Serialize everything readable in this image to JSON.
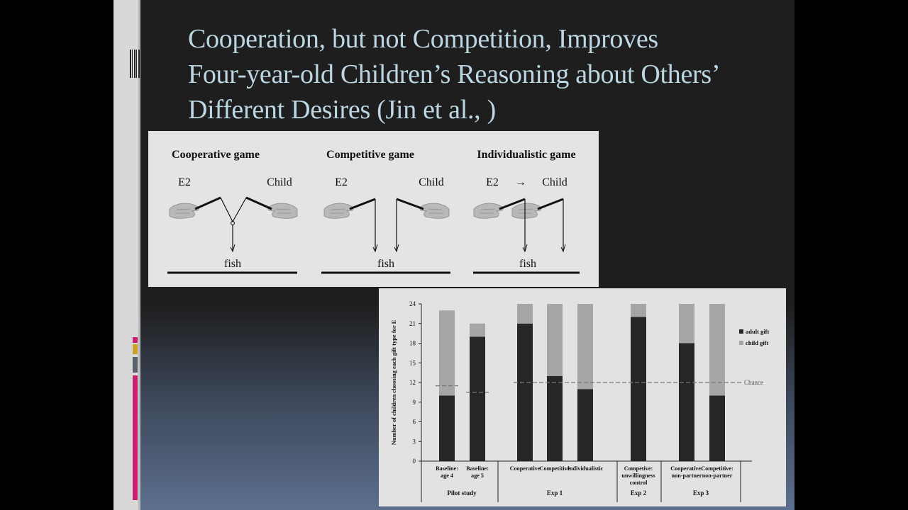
{
  "slide": {
    "title_lines": [
      "Cooperation, but not Competition, Improves",
      "Four-year-old Children’s Reasoning about Others’",
      "Different Desires (Jin et al., )"
    ],
    "accent_colors": [
      "#cc1f72",
      "#c9a227",
      "#5a6070",
      "#cc1f72"
    ]
  },
  "games_figure": {
    "panels": [
      {
        "title": "Cooperative game",
        "left_label": "E2",
        "right_label": "Child",
        "arrow": "",
        "bottom_label": "fish"
      },
      {
        "title": "Competitive game",
        "left_label": "E2",
        "right_label": "Child",
        "arrow": "",
        "bottom_label": "fish"
      },
      {
        "title": "Individualistic game",
        "left_label": "E2",
        "right_label": "Child",
        "arrow": "→",
        "bottom_label": "fish"
      }
    ]
  },
  "chart_data": {
    "type": "bar",
    "stacked": true,
    "ylabel": "Number of children choosing each gift type for E",
    "ylim": [
      0,
      24
    ],
    "yticks": [
      0,
      3,
      6,
      9,
      12,
      15,
      18,
      21,
      24
    ],
    "categories": [
      "Baseline: age 4",
      "Baseline: age 5",
      "Cooperative",
      "Competitive",
      "Individualistic",
      "Competive: unwillingness control",
      "Cooperative: non-partner",
      "Competitive: non-partner"
    ],
    "category_label_lines": [
      [
        "Baseline:",
        "age 4"
      ],
      [
        "Baseline:",
        "age 5"
      ],
      [
        "Cooperative"
      ],
      [
        "Competitive"
      ],
      [
        "Individualistic"
      ],
      [
        "Competive:",
        "unwillingness",
        "control"
      ],
      [
        "Cooperative:",
        "non-partner"
      ],
      [
        "Competitive:",
        "non-partner"
      ]
    ],
    "groups": [
      {
        "name": "Pilot study",
        "categories": [
          0,
          1
        ]
      },
      {
        "name": "Exp 1",
        "categories": [
          2,
          3,
          4
        ]
      },
      {
        "name": "Exp 2",
        "categories": [
          5
        ]
      },
      {
        "name": "Exp 3",
        "categories": [
          6,
          7
        ]
      }
    ],
    "series": [
      {
        "name": "adult gift",
        "color": "#262626",
        "values": [
          10,
          19,
          21,
          13,
          11,
          22,
          18,
          10
        ]
      },
      {
        "name": "child gift",
        "color": "#a6a6a6",
        "values": [
          13,
          2,
          3,
          11,
          13,
          2,
          6,
          14
        ]
      }
    ],
    "reference_lines": [
      {
        "label": "",
        "y": 11.5,
        "from_category": 0,
        "to_category": 0
      },
      {
        "label": "",
        "y": 10.5,
        "from_category": 1,
        "to_category": 1
      },
      {
        "label": "Chance",
        "y": 12,
        "from_category": 2,
        "to_category": 7
      }
    ]
  }
}
